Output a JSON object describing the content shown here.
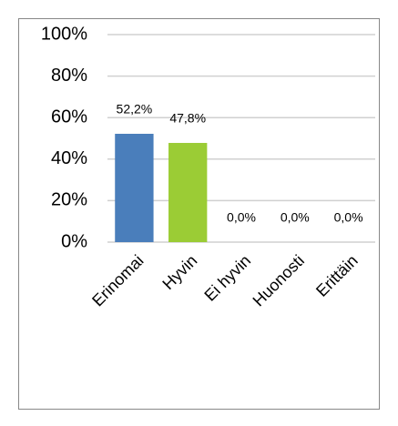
{
  "chart_data": {
    "type": "bar",
    "categories": [
      "Erinomai",
      "Hyvin",
      "Ei hyvin",
      "Huonosti",
      "Erittäin"
    ],
    "values": [
      52.2,
      47.8,
      0,
      0,
      0
    ],
    "value_labels": [
      "52,2%",
      "47,8%",
      "0,0%",
      "0,0%",
      "0,0%"
    ],
    "colors": [
      "#4a7ebb",
      "#9bcc35",
      "#f79646",
      "#8064a2",
      "#4bacc6"
    ],
    "ylim": [
      0,
      100
    ],
    "yticks": [
      {
        "value": 0,
        "label": "0%"
      },
      {
        "value": 20,
        "label": "20%"
      },
      {
        "value": 40,
        "label": "40%"
      },
      {
        "value": 60,
        "label": "60%"
      },
      {
        "value": 80,
        "label": "80%"
      },
      {
        "value": 100,
        "label": "100%"
      }
    ],
    "grid": true
  }
}
